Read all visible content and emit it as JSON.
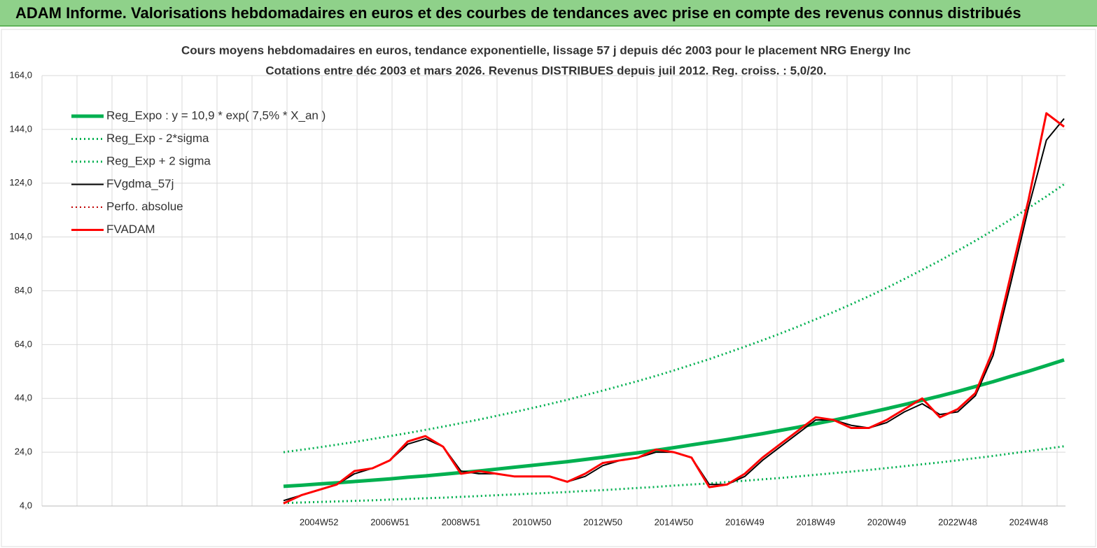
{
  "header": {
    "title": "ADAM Informe. Valorisations hebdomadaires en euros et des courbes de tendances avec prise en compte des revenus connus distribués"
  },
  "chart_data": {
    "type": "line",
    "title": "Cours moyens hebdomadaires en euros, tendance exponentielle, lissage 57 j depuis déc 2003 pour le placement NRG Energy Inc",
    "subtitle": "Cotations entre déc 2003 et mars 2026. Revenus DISTRIBUES depuis juil 2012. Reg. croiss. : 5,0/20.",
    "categories": [
      null,
      null,
      "2004W52",
      null,
      null,
      null,
      "2006W51",
      null,
      null,
      null,
      "2008W51",
      null,
      null,
      null,
      "2010W50",
      null,
      null,
      null,
      "2012W50",
      null,
      null,
      null,
      "2014W50",
      null,
      null,
      null,
      "2016W49",
      null,
      null,
      null,
      "2018W49",
      null,
      null,
      null,
      "2020W49",
      null,
      null,
      null,
      "2022W48",
      null,
      null,
      null,
      "2024W48",
      null,
      null
    ],
    "ylim": [
      4,
      164
    ],
    "yticks": [
      {
        "value": 4,
        "label": "4,0"
      },
      {
        "value": 24,
        "label": "24,0"
      },
      {
        "value": 44,
        "label": "44,0"
      },
      {
        "value": 64,
        "label": "64,0"
      },
      {
        "value": 84,
        "label": "84,0"
      },
      {
        "value": 104,
        "label": "104,0"
      },
      {
        "value": 124,
        "label": "124,0"
      },
      {
        "value": 144,
        "label": "144,0"
      },
      {
        "value": 164,
        "label": "164,0"
      }
    ],
    "grid": true,
    "legend": "upper left",
    "series": [
      {
        "name": "Reg_Expo : y = 10,9 * exp( 7,5% *  X_an )",
        "color": "#00b050",
        "style": "solid",
        "width": 5,
        "values": [
          11.3,
          11.7,
          12.2,
          12.6,
          13.1,
          13.6,
          14.1,
          14.7,
          15.2,
          15.8,
          16.4,
          17.0,
          17.7,
          18.4,
          19.1,
          19.8,
          20.5,
          21.3,
          22.1,
          23.0,
          23.8,
          24.7,
          25.7,
          26.7,
          27.7,
          28.7,
          29.8,
          30.9,
          32.1,
          33.3,
          34.6,
          35.9,
          37.3,
          38.7,
          40.2,
          41.7,
          43.3,
          44.9,
          46.6,
          48.4,
          50.2,
          52.2,
          54.1,
          56.2,
          58.3
        ]
      },
      {
        "name": "Reg_Exp - 2*sigma",
        "color": "#00b050",
        "style": "dotted",
        "width": 3,
        "values": [
          5.1,
          5.3,
          5.5,
          5.7,
          5.9,
          6.1,
          6.4,
          6.6,
          6.9,
          7.1,
          7.4,
          7.7,
          8.0,
          8.3,
          8.6,
          8.9,
          9.2,
          9.6,
          9.9,
          10.3,
          10.7,
          11.1,
          11.6,
          12.0,
          12.4,
          12.9,
          13.4,
          13.9,
          14.4,
          15.0,
          15.6,
          16.2,
          16.8,
          17.4,
          18.1,
          18.8,
          19.5,
          20.2,
          21.0,
          21.8,
          22.6,
          23.5,
          24.4,
          25.3,
          26.2
        ]
      },
      {
        "name": "Reg_Exp + 2 sigma",
        "color": "#00b050",
        "style": "dotted",
        "width": 3,
        "values": [
          24.0,
          24.9,
          25.8,
          26.8,
          27.8,
          28.9,
          30.0,
          31.1,
          32.3,
          33.5,
          34.8,
          36.1,
          37.5,
          38.9,
          40.4,
          41.9,
          43.5,
          45.2,
          46.9,
          48.7,
          50.5,
          52.4,
          54.4,
          56.5,
          58.6,
          60.9,
          63.2,
          65.6,
          68.1,
          70.7,
          73.4,
          76.1,
          79.0,
          82.0,
          85.1,
          88.4,
          91.8,
          95.2,
          98.9,
          102.6,
          106.5,
          110.6,
          114.8,
          119.1,
          123.6
        ]
      },
      {
        "name": "FVgdma_57j",
        "color": "#000000",
        "style": "solid",
        "width": 2,
        "values": [
          6,
          8,
          10,
          12,
          16,
          18,
          21,
          27,
          29,
          26,
          17,
          16,
          16,
          15,
          15,
          15,
          13,
          15,
          19,
          21,
          22,
          24,
          24,
          22,
          12,
          12,
          15,
          21,
          26,
          31,
          36,
          36,
          34,
          33,
          35,
          39,
          42,
          38,
          39,
          45,
          60,
          87,
          115,
          140,
          148
        ]
      },
      {
        "name": "Perfo. absolue",
        "color": "#c00000",
        "style": "dotted",
        "width": 2,
        "values": [
          5,
          8,
          10,
          12,
          17,
          18,
          21,
          28,
          30,
          26,
          16,
          17,
          16,
          15,
          15,
          15,
          13,
          16,
          20,
          21,
          22,
          25,
          24,
          22,
          11,
          12,
          16,
          22,
          27,
          32,
          37,
          36,
          33,
          33,
          36,
          40,
          44,
          37,
          40,
          46,
          62,
          90,
          118,
          150,
          145
        ]
      },
      {
        "name": "FVADAM",
        "color": "#ff0000",
        "style": "solid",
        "width": 3,
        "values": [
          5,
          8,
          10,
          12,
          17,
          18,
          21,
          28,
          30,
          26,
          16,
          17,
          16,
          15,
          15,
          15,
          13,
          16,
          20,
          21,
          22,
          25,
          24,
          22,
          11,
          12,
          16,
          22,
          27,
          32,
          37,
          36,
          33,
          33,
          36,
          40,
          44,
          37,
          40,
          46,
          62,
          90,
          118,
          150,
          145
        ]
      }
    ]
  }
}
